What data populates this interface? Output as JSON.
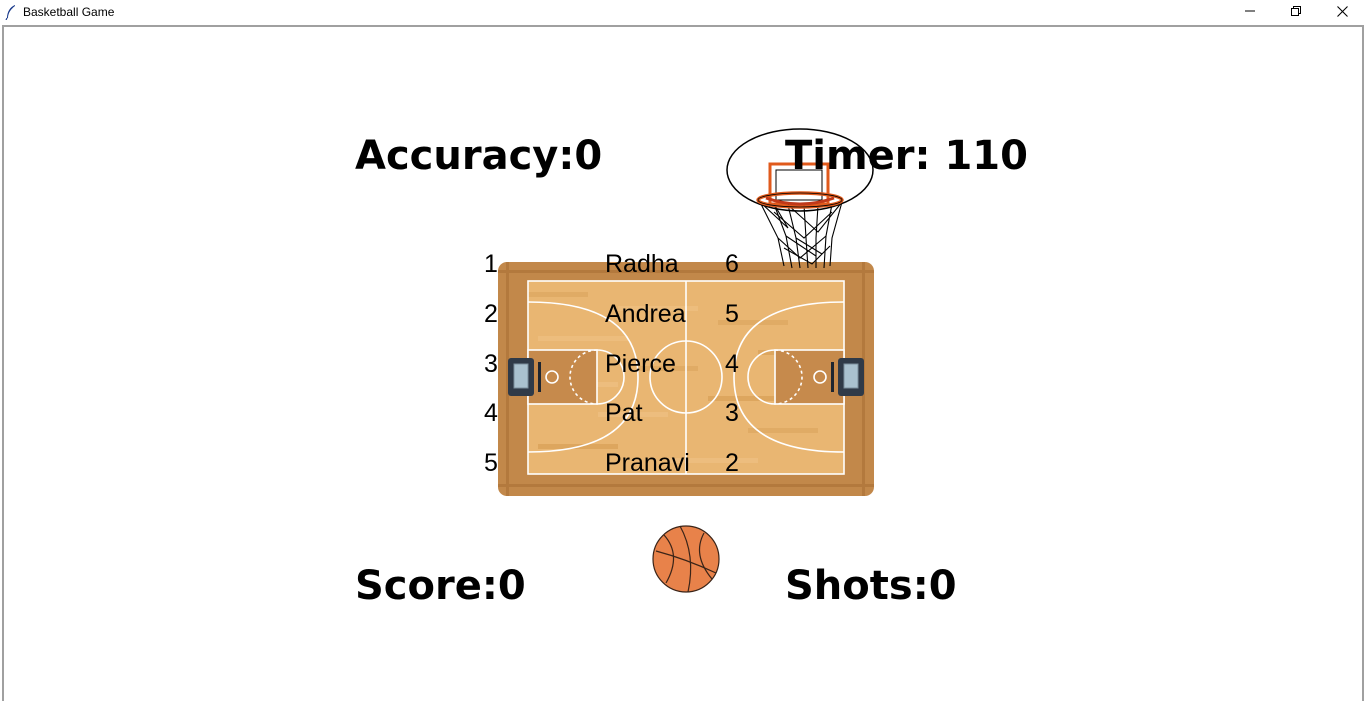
{
  "window": {
    "title": "Basketball Game",
    "controls": {
      "minimize_icon": "minimize-icon",
      "maximize_icon": "restore-icon",
      "close_icon": "close-icon"
    }
  },
  "hud": {
    "accuracy": "Accuracy:0",
    "timer": "Timer: 110",
    "score": "Score:0",
    "shots": "Shots:0"
  },
  "leaderboard": [
    {
      "rank": "1",
      "name": "Radha",
      "score": "6"
    },
    {
      "rank": "2",
      "name": "Andrea",
      "score": "5"
    },
    {
      "rank": "3",
      "name": "Pierce",
      "score": "4"
    },
    {
      "rank": "4",
      "name": "Pat",
      "score": "3"
    },
    {
      "rank": "5",
      "name": "Pranavi",
      "score": "2"
    }
  ],
  "colors": {
    "wood_light": "#e8b36f",
    "wood_dark": "#bf8243",
    "ball": "#e8824a",
    "rim": "#e05a1c"
  }
}
